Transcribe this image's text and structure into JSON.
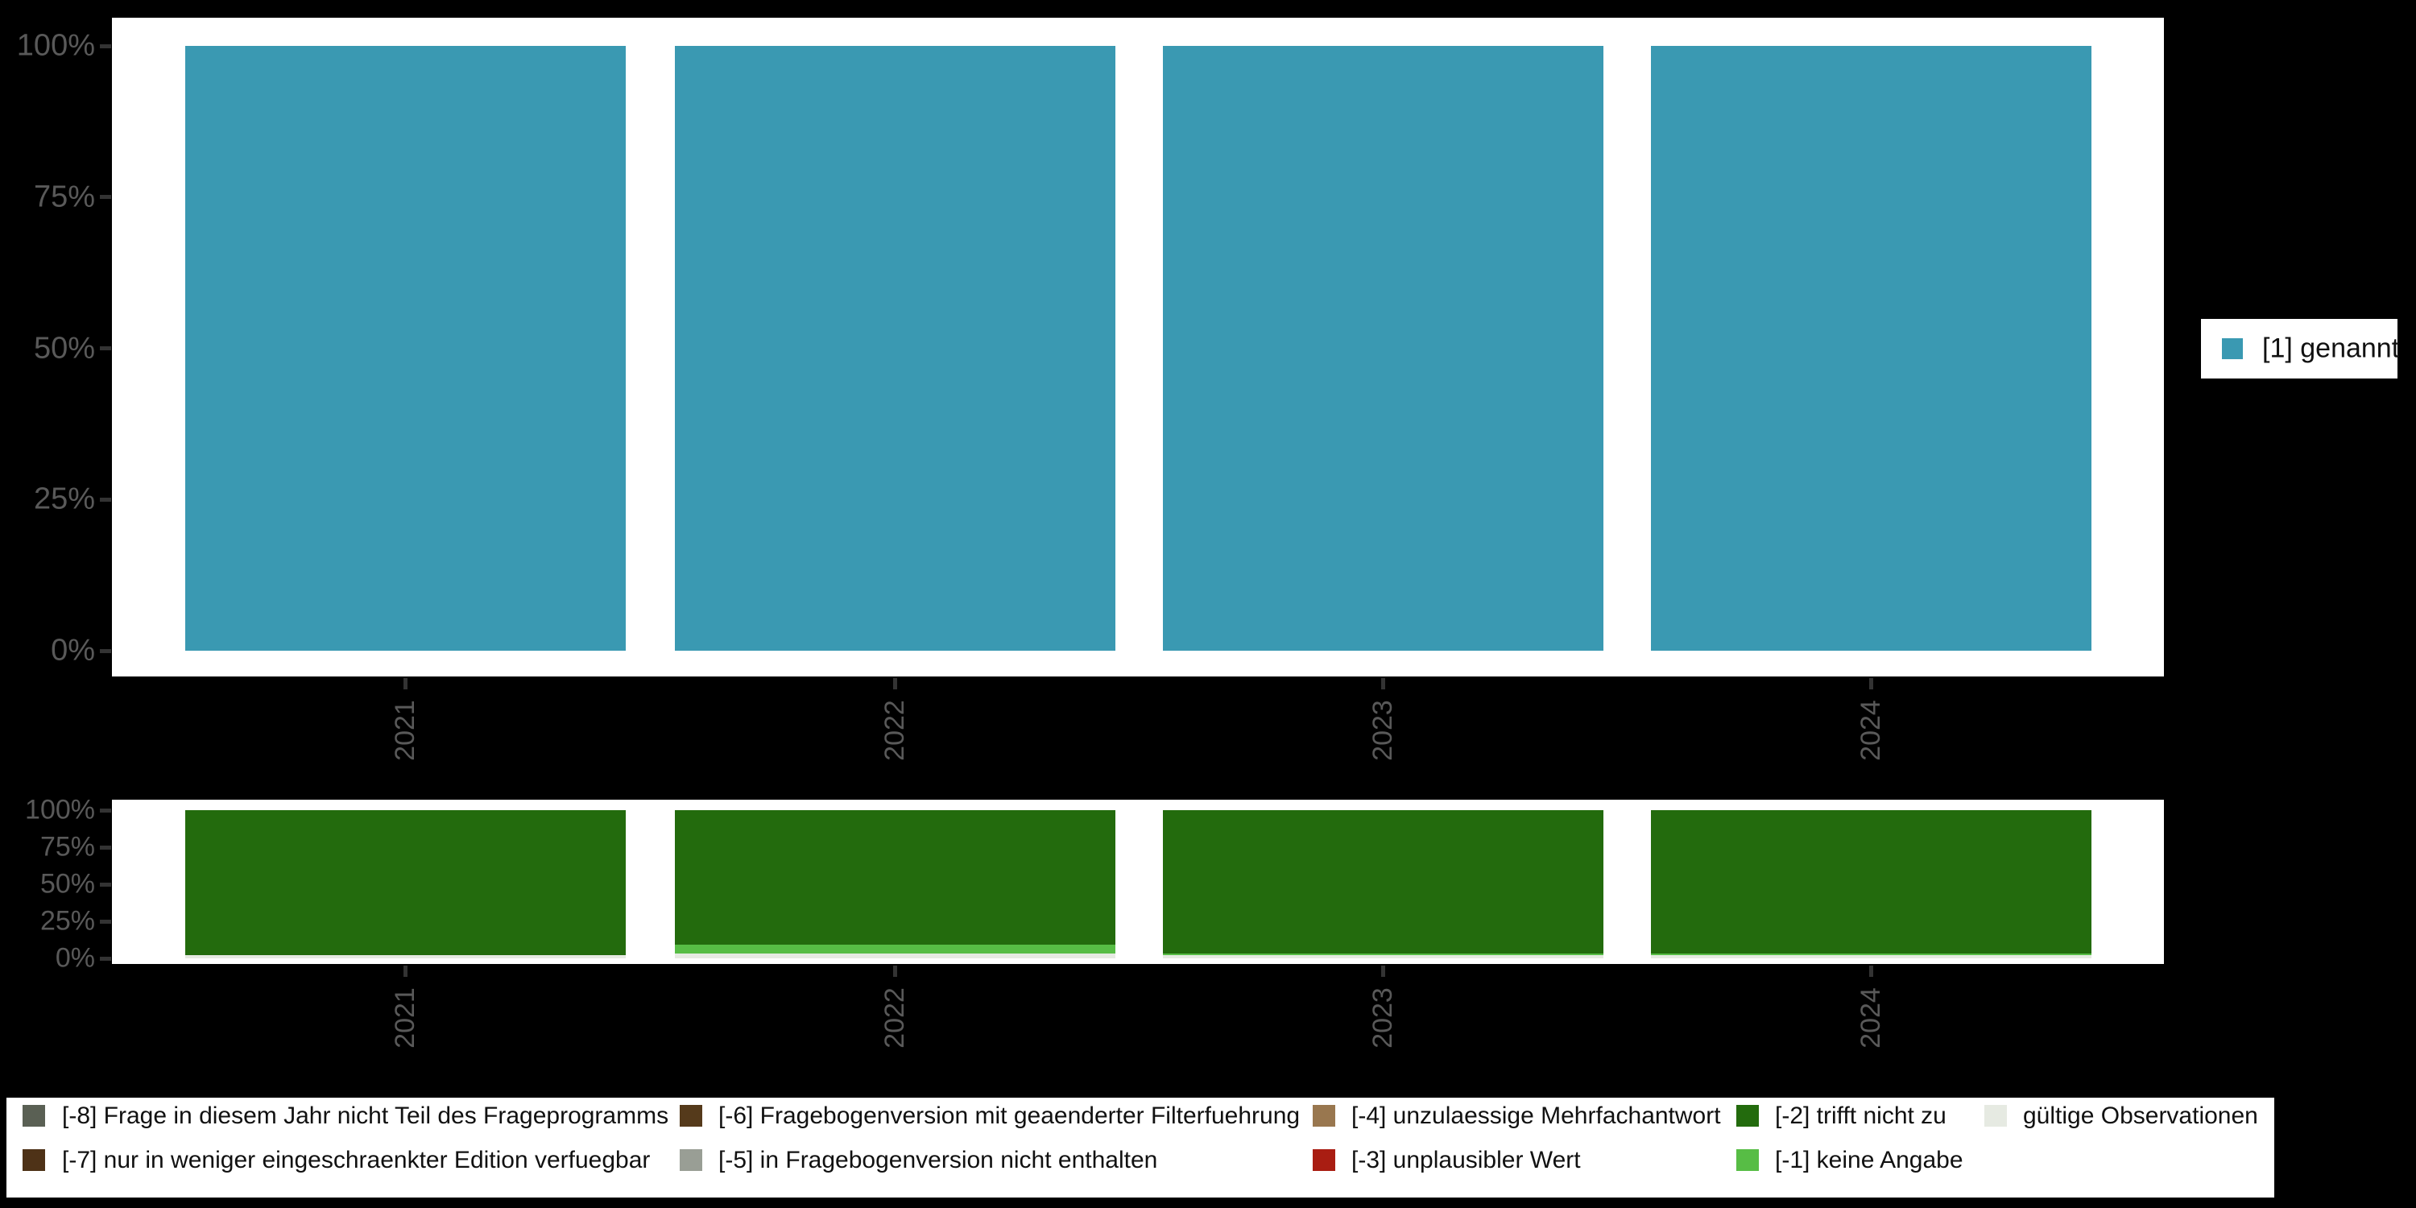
{
  "background_color": "#000000",
  "axis": {
    "label_color": "#595959",
    "tick_color": "#333333"
  },
  "chart_data": [
    {
      "type": "bar",
      "panel": "top",
      "categories": [
        "2021",
        "2022",
        "2023",
        "2024"
      ],
      "series": [
        {
          "name": "[1] genannt",
          "color": "#3A99B2",
          "values": [
            100,
            100,
            100,
            100
          ]
        }
      ],
      "yticks": [
        "0%",
        "25%",
        "50%",
        "75%",
        "100%"
      ],
      "ylim": [
        0,
        100
      ],
      "grid": "off",
      "legend_position": "right"
    },
    {
      "type": "bar-stacked",
      "panel": "bottom",
      "categories": [
        "2021",
        "2022",
        "2023",
        "2024"
      ],
      "series": [
        {
          "name": "gültige Observationen",
          "color": "#E6EAE2",
          "values": [
            2,
            3,
            2,
            2
          ]
        },
        {
          "name": "[-1] keine Angabe",
          "color": "#57BD45",
          "values": [
            0,
            6,
            1.5,
            1.5
          ]
        },
        {
          "name": "[-2] trifft nicht zu",
          "color": "#236B0D",
          "values": [
            98,
            91,
            96.5,
            96.5
          ]
        }
      ],
      "yticks": [
        "0%",
        "25%",
        "50%",
        "75%",
        "100%"
      ],
      "ylim": [
        0,
        100
      ],
      "grid": "off",
      "legend_position": "bottom"
    }
  ],
  "top_legend": {
    "items": [
      {
        "label": "[1] genannt",
        "color": "#3A99B2"
      }
    ]
  },
  "bottom_legend": {
    "columns": [
      {
        "row1": {
          "label": "[-8] Frage in diesem Jahr nicht Teil des Frageprogramms",
          "color": "#5A6054"
        },
        "row2": {
          "label": "[-7] nur in weniger eingeschraenkter Edition verfuegbar",
          "color": "#4E3217"
        }
      },
      {
        "row1": {
          "label": "[-6] Fragebogenversion mit geaenderter Filterfuehrung",
          "color": "#553A1B"
        },
        "row2": {
          "label": "[-5] in Fragebogenversion nicht enthalten",
          "color": "#999E95"
        }
      },
      {
        "row1": {
          "label": "[-4] unzulaessige Mehrfachantwort",
          "color": "#99774F"
        },
        "row2": {
          "label": "[-3] unplausibler Wert",
          "color": "#A91D12"
        }
      },
      {
        "row1": {
          "label": "[-2] trifft nicht zu",
          "color": "#236B0D"
        },
        "row2": {
          "label": "[-1] keine Angabe",
          "color": "#57BD45"
        }
      },
      {
        "row1": {
          "label": "gültige Observationen",
          "color": "#E6EAE2"
        },
        "row2": null
      }
    ]
  }
}
